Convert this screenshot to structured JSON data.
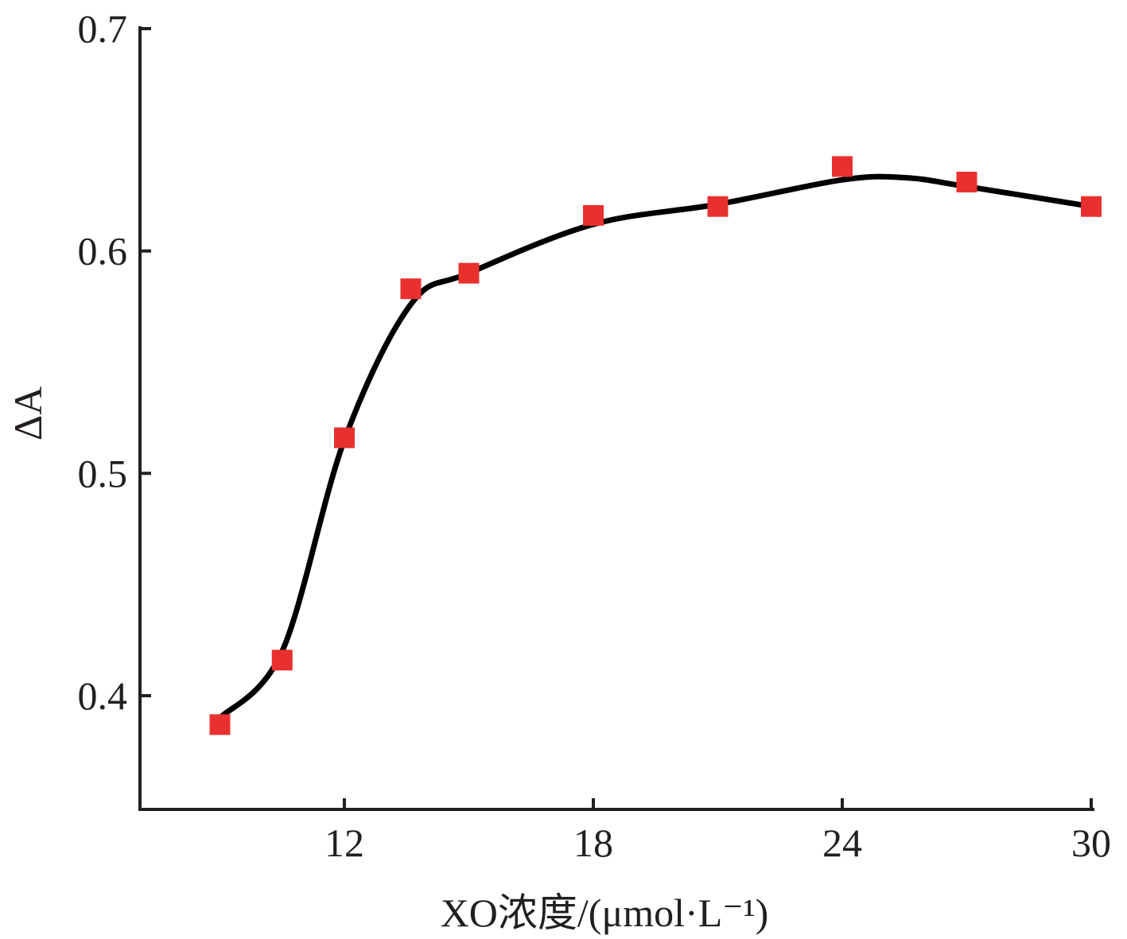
{
  "chart_data": {
    "type": "scatter",
    "title": "",
    "xlabel": "XO浓度/(μmol·L⁻¹)",
    "ylabel": "ΔA",
    "xlim": [
      7,
      30
    ],
    "ylim": [
      0.35,
      0.7
    ],
    "x_ticks": [
      12,
      18,
      24,
      30
    ],
    "x_tick_labels": [
      "12",
      "18",
      "24",
      "30"
    ],
    "y_ticks": [
      0.4,
      0.5,
      0.6,
      0.7
    ],
    "y_tick_labels": [
      "0.4",
      "0.5",
      "0.6",
      "0.7"
    ],
    "grid": false,
    "legend": "none",
    "series": [
      {
        "type": "scatter",
        "marker": "square",
        "color": "#e8312f",
        "x": [
          9,
          10.5,
          12,
          13.6,
          15,
          18,
          21,
          24,
          27,
          30
        ],
        "y": [
          0.387,
          0.416,
          0.516,
          0.583,
          0.59,
          0.616,
          0.62,
          0.638,
          0.631,
          0.62
        ]
      },
      {
        "type": "line",
        "smooth": true,
        "color": "#000000",
        "x": [
          9,
          10.5,
          12,
          13.6,
          15,
          18,
          21,
          24,
          25.5,
          27,
          30
        ],
        "y": [
          0.39,
          0.42,
          0.515,
          0.576,
          0.59,
          0.612,
          0.621,
          0.632,
          0.633,
          0.629,
          0.62
        ]
      }
    ]
  }
}
